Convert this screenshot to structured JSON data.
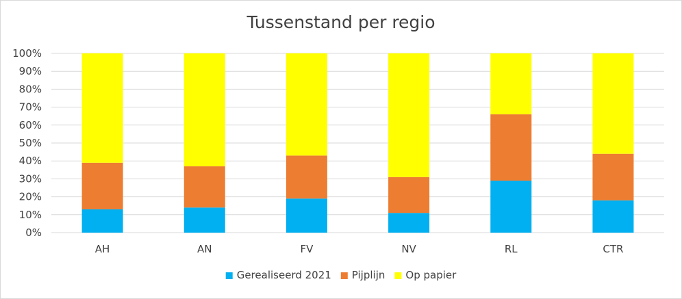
{
  "chart_data": {
    "type": "bar",
    "stacked": true,
    "title": "Tussenstand per regio",
    "categories": [
      "AH",
      "AN",
      "FV",
      "NV",
      "RL",
      "CTR"
    ],
    "series": [
      {
        "name": "Gerealiseerd 2021",
        "color": "#00b0f0",
        "values": [
          13,
          14,
          19,
          11,
          29,
          18
        ]
      },
      {
        "name": "Pijplijn",
        "color": "#ed7d31",
        "values": [
          26,
          23,
          24,
          20,
          37,
          26
        ]
      },
      {
        "name": "Op papier",
        "color": "#ffff00",
        "values": [
          61,
          63,
          57,
          69,
          34,
          56
        ]
      }
    ],
    "ylim": [
      0,
      100
    ],
    "yticks": [
      "0%",
      "10%",
      "20%",
      "30%",
      "40%",
      "50%",
      "60%",
      "70%",
      "80%",
      "90%",
      "100%"
    ],
    "grid": true,
    "legend": "bottom"
  }
}
